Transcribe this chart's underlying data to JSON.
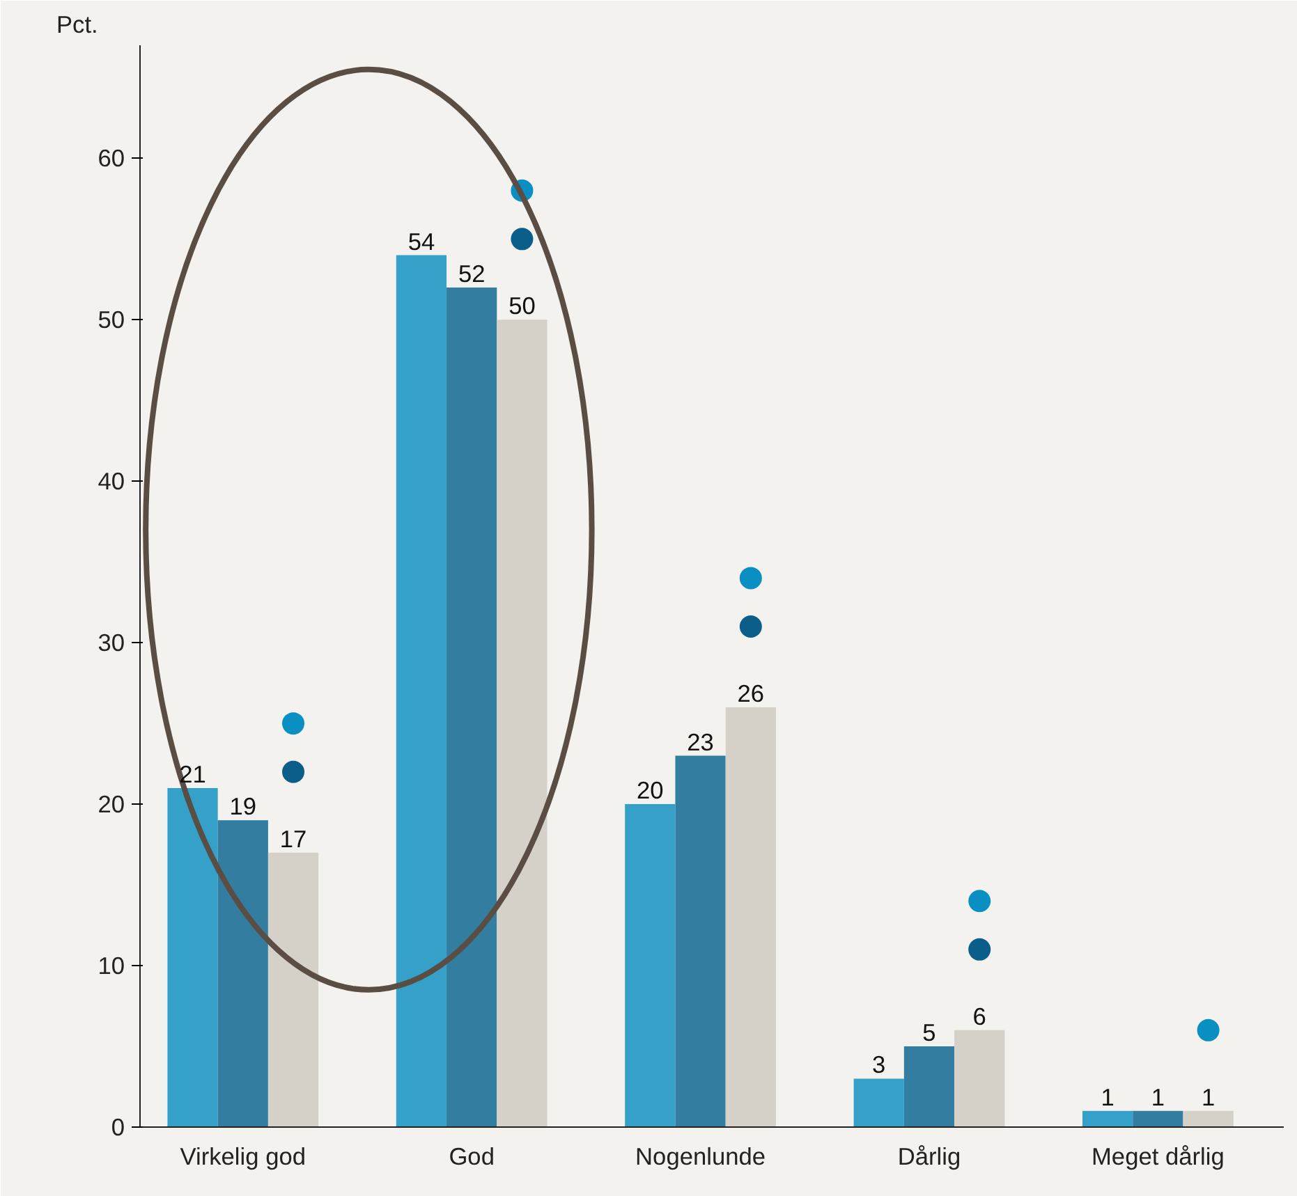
{
  "chart_data": {
    "type": "bar",
    "ylabel": "Pct.",
    "categories": [
      "Virkelig god",
      "God",
      "Nogenlunde",
      "Dårlig",
      "Meget dårlig"
    ],
    "series": [
      {
        "color": "#35a0c8",
        "values": [
          21,
          54,
          20,
          3,
          1
        ],
        "value_labels": [
          "21",
          "54",
          "20",
          "3",
          "1"
        ]
      },
      {
        "color": "#337ea0",
        "values": [
          19,
          52,
          23,
          5,
          1
        ],
        "value_labels": [
          "19",
          "52",
          "23",
          "5",
          "1"
        ]
      },
      {
        "color": "#d5d1c8",
        "values": [
          17,
          50,
          26,
          6,
          1
        ],
        "value_labels": [
          "17",
          "50",
          "26",
          "6",
          "1"
        ]
      },
      {
        "type": "scatter",
        "color": "#0a8fc3",
        "x": [
          "Virkelig god",
          "God",
          "Nogenlunde",
          "Dårlig",
          "Meget dårlig"
        ],
        "values": [
          25,
          58,
          34,
          14,
          6
        ]
      },
      {
        "type": "scatter",
        "color": "#0b5e8a",
        "x": [
          "Virkelig god",
          "God",
          "Nogenlunde",
          "Dårlig",
          "Meget dårlig"
        ],
        "values": [
          22,
          55,
          31,
          11,
          null
        ]
      }
    ],
    "ylim": [
      0,
      67
    ],
    "yticks": [
      0,
      10,
      20,
      30,
      40,
      50,
      60
    ],
    "grid": false,
    "marker": "circle"
  }
}
